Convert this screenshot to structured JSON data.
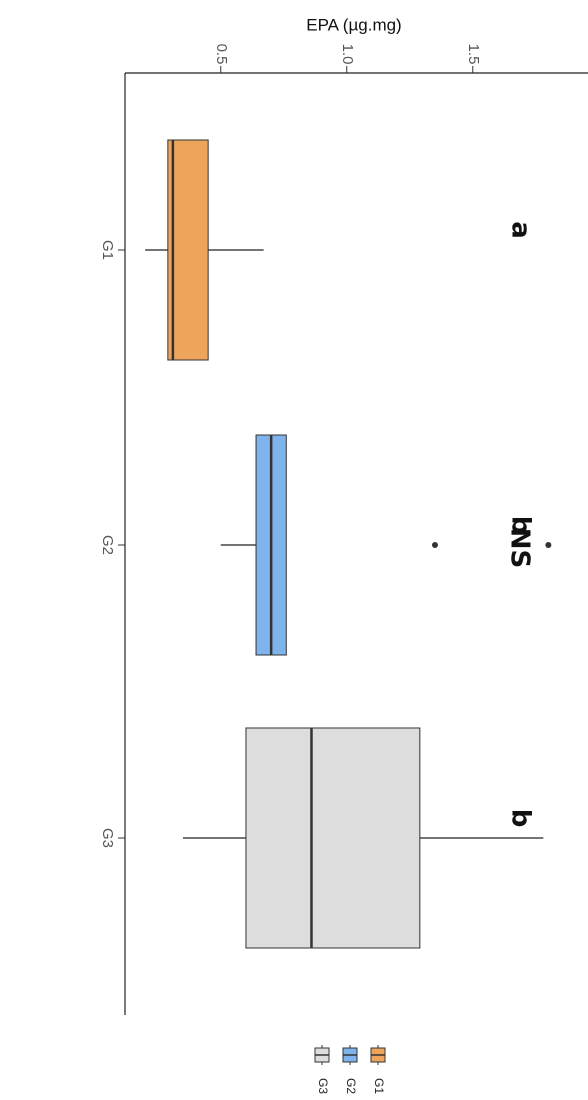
{
  "chart_data": {
    "type": "boxplot",
    "title": "NS",
    "ylabel": "EPA (µg.mg)",
    "xlabel": "",
    "ylim": [
      0.12,
      1.7
    ],
    "y_ticks": [
      {
        "value": 0.5,
        "label": "0.5"
      },
      {
        "value": 1.0,
        "label": "1.0"
      },
      {
        "value": 1.5,
        "label": "1.5"
      }
    ],
    "grid": false,
    "legend_position": "bottom",
    "categories": [
      "G1",
      "G2",
      "G3"
    ],
    "boxes": [
      {
        "group": "G1",
        "whisker_low": 0.2,
        "q1": 0.29,
        "median": 0.31,
        "q3": 0.45,
        "whisker_high": 0.67,
        "outliers": [],
        "color": "#EDA55C",
        "letter": "a"
      },
      {
        "group": "G2",
        "whisker_low": 0.5,
        "q1": 0.64,
        "median": 0.7,
        "q3": 0.76,
        "whisker_high": 0.76,
        "outliers": [
          1.35,
          1.8
        ],
        "color": "#7EB3EB",
        "letter": "b"
      },
      {
        "group": "G3",
        "whisker_low": 0.35,
        "q1": 0.6,
        "median": 0.86,
        "q3": 1.29,
        "whisker_high": 1.78,
        "outliers": [],
        "color": "#DDDDDD",
        "letter": "b"
      }
    ]
  },
  "legend": {
    "items": [
      {
        "label": "G1",
        "color": "#EDA55C"
      },
      {
        "label": "G2",
        "color": "#7EB3EB"
      },
      {
        "label": "G3",
        "color": "#DDDDDD"
      }
    ]
  }
}
